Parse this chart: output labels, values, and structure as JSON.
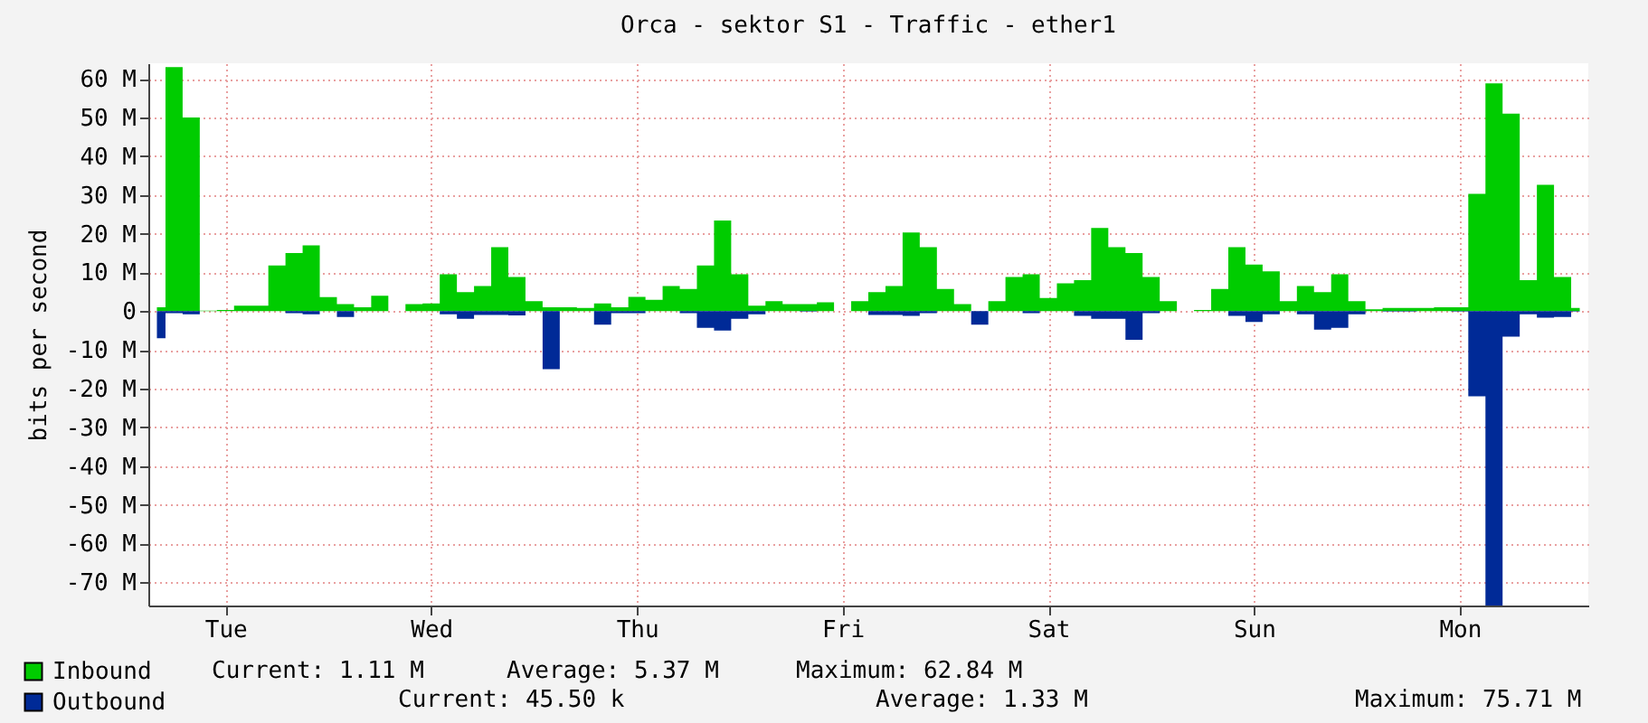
{
  "chart_data": {
    "type": "area",
    "title": "Orca - sektor S1 - Traffic - ether1",
    "ylabel": "bits per second",
    "categories": [
      null,
      null,
      null,
      null,
      "Tue",
      null,
      null,
      null,
      null,
      null,
      null,
      null,
      null,
      null,
      null,
      null,
      "Wed",
      null,
      null,
      null,
      null,
      null,
      null,
      null,
      null,
      null,
      null,
      null,
      "Thu",
      null,
      null,
      null,
      null,
      null,
      null,
      null,
      null,
      null,
      null,
      null,
      "Fri",
      null,
      null,
      null,
      null,
      null,
      null,
      null,
      null,
      null,
      null,
      null,
      "Sat",
      null,
      null,
      null,
      null,
      null,
      null,
      null,
      null,
      null,
      null,
      null,
      "Sun",
      null,
      null,
      null,
      null,
      null,
      null,
      null,
      null,
      null,
      null,
      null,
      "Mon",
      null,
      null,
      null,
      null,
      null,
      null,
      null
    ],
    "ylim": [
      -76,
      64
    ],
    "yticks": [
      {
        "value": -70,
        "label": "-70 M"
      },
      {
        "value": -60,
        "label": "-60 M"
      },
      {
        "value": -50,
        "label": "-50 M"
      },
      {
        "value": -40,
        "label": "-40 M"
      },
      {
        "value": -30,
        "label": "-30 M"
      },
      {
        "value": -20,
        "label": "-20 M"
      },
      {
        "value": -10,
        "label": "-10 M"
      },
      {
        "value": 0,
        "label": "0"
      },
      {
        "value": 10,
        "label": "10 M"
      },
      {
        "value": 20,
        "label": "20 M"
      },
      {
        "value": 30,
        "label": "30 M"
      },
      {
        "value": 40,
        "label": "40 M"
      },
      {
        "value": 50,
        "label": "50 M"
      },
      {
        "value": 60,
        "label": "60 M"
      }
    ],
    "grid": true,
    "legend": "bottom left",
    "annotations": [
      "Current: 1.11 M",
      "Average: 5.37 M",
      "Maximum: 62.84 M",
      "Current: 45.50 k",
      "Average: 1.33 M",
      "Maximum: 75.71 M"
    ],
    "series": [
      {
        "name": "Inbound",
        "color": "#00cc00",
        "values": [
          1,
          63,
          50,
          0.1,
          0.3,
          1.4,
          1.4,
          11.8,
          15,
          17,
          3.6,
          1.8,
          1,
          4,
          0,
          1.8,
          2,
          9.5,
          4.9,
          6.5,
          16.5,
          8.8,
          2.6,
          1,
          1,
          0.8,
          2,
          1,
          3.7,
          2.9,
          6.5,
          5.7,
          11.8,
          23.4,
          9.5,
          1.4,
          2.6,
          1.8,
          1.8,
          2.3,
          0,
          2.6,
          4.9,
          6.5,
          20.3,
          16.5,
          5.7,
          1.8,
          0,
          2.6,
          8.8,
          9.5,
          3.4,
          7.2,
          8,
          21.5,
          16.5,
          15,
          8.8,
          2.6,
          0,
          0.3,
          5.7,
          16.5,
          12,
          10.3,
          2.6,
          6.5,
          4.9,
          9.5,
          2.6,
          0.5,
          0.8,
          0.8,
          0.8,
          1,
          1,
          30.3,
          58.8,
          51,
          8,
          32.6,
          8.8,
          0.8
        ]
      },
      {
        "name": "Outbound",
        "color": "#002a97",
        "values": [
          -7,
          -0.5,
          -0.8,
          0,
          0,
          0,
          0,
          0,
          -0.5,
          -0.8,
          0,
          -1.5,
          0,
          0,
          0,
          0,
          0,
          -0.8,
          -2,
          -1,
          -1,
          -1.1,
          0,
          -15,
          0,
          0,
          -3.5,
          -0.5,
          -0.5,
          0,
          0,
          -0.5,
          -4.3,
          -5,
          -2,
          -0.8,
          0,
          0,
          -0.1,
          0,
          0,
          0,
          -1,
          -1,
          -1.2,
          -0.5,
          0,
          0,
          -3.5,
          0,
          0,
          -0.5,
          0,
          0,
          -1.2,
          -2,
          -2,
          -7.4,
          -0.5,
          0,
          0,
          0,
          0,
          -1.2,
          -2.8,
          -0.8,
          0,
          -0.8,
          -4.8,
          -4.3,
          -0.8,
          0,
          -0.1,
          -0.1,
          0,
          0,
          -0.1,
          -22,
          -76,
          -6.6,
          -0.8,
          -1.7,
          -1.5,
          -0.1
        ]
      }
    ]
  }
}
